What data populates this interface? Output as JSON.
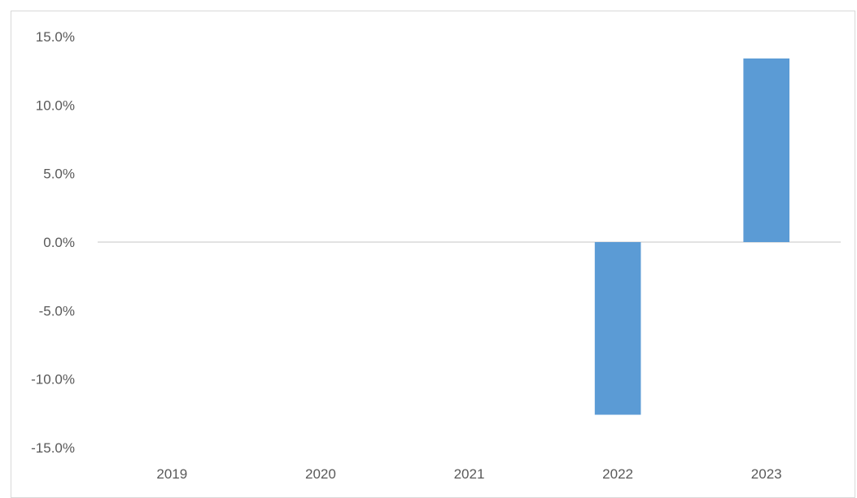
{
  "chart_data": {
    "type": "bar",
    "title": "",
    "xlabel": "",
    "ylabel": "",
    "categories": [
      "2019",
      "2020",
      "2021",
      "2022",
      "2023"
    ],
    "series": [
      {
        "values": [
          0,
          0,
          0,
          -0.126,
          0.134
        ]
      }
    ],
    "ylim": [
      -0.15,
      0.15
    ],
    "yticks": [
      0.15,
      0.1,
      0.05,
      0.0,
      -0.05,
      -0.1,
      -0.15
    ],
    "ytick_labels": [
      "15.0%",
      "10.0%",
      "5.0%",
      "0.0%",
      "-5.0%",
      "-10.0%",
      "-15.0%"
    ],
    "grid": false,
    "legend": "none",
    "bar_color": "#5b9bd5"
  }
}
